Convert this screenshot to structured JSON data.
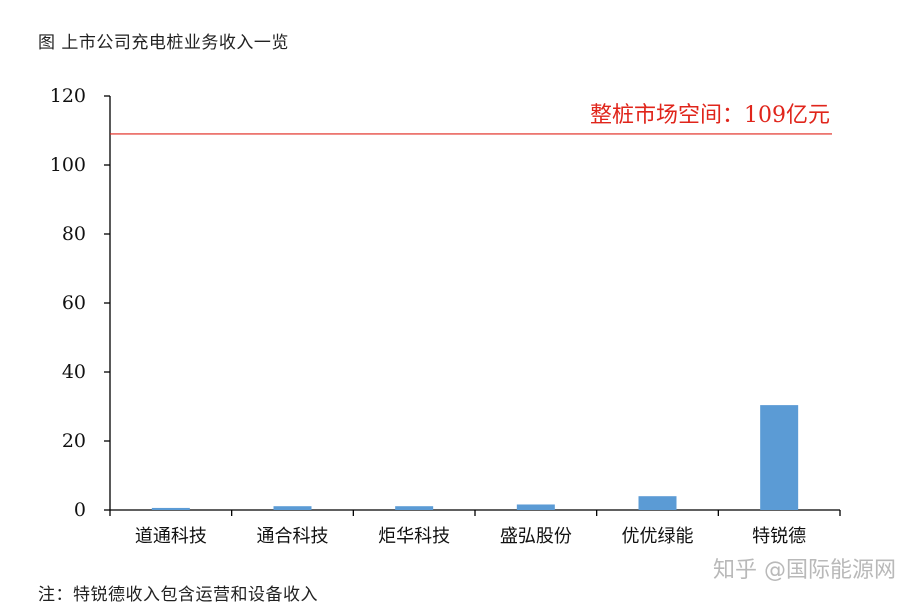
{
  "figure_title": "图  上市公司充电桩业务收入一览",
  "note": "注：特锐德收入包含运营和设备收入",
  "watermark": "知乎 @国际能源网",
  "colors": {
    "bar": "#5b9bd5",
    "reference_line": "#e0251b",
    "axis": "#000000"
  },
  "chart_data": {
    "type": "bar",
    "title": "",
    "xlabel": "",
    "ylabel": "",
    "ylim": [
      0,
      120
    ],
    "yticks": [
      0,
      20,
      40,
      60,
      80,
      100,
      120
    ],
    "categories": [
      "道通科技",
      "通合科技",
      "炬华科技",
      "盛弘股份",
      "优优绿能",
      "特锐德"
    ],
    "values": [
      0.6,
      1.1,
      1.1,
      1.6,
      4.0,
      30.4
    ],
    "grid": false,
    "reference_line": {
      "value": 109,
      "label": "整桩市场空间：109亿元"
    }
  }
}
